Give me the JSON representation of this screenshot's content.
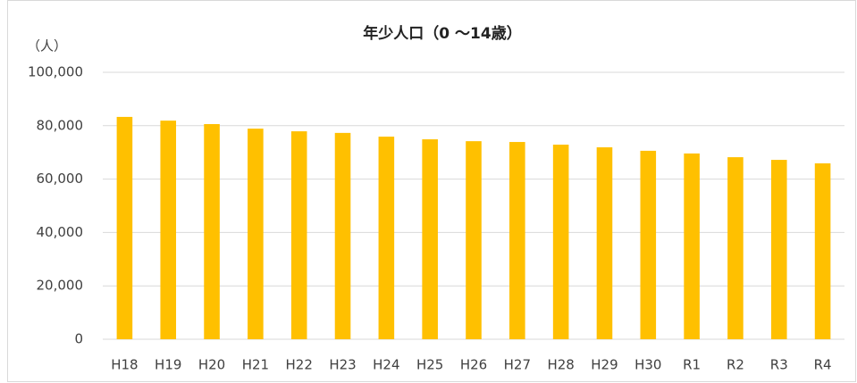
{
  "chart_data": {
    "type": "bar",
    "title": "年少人口（0 ～14歳）",
    "y_axis_label": "（人）",
    "categories": [
      "H18",
      "H19",
      "H20",
      "H21",
      "H22",
      "H23",
      "H24",
      "H25",
      "H26",
      "H27",
      "H28",
      "H29",
      "H30",
      "R1",
      "R2",
      "R3",
      "R4"
    ],
    "values": [
      83300,
      81900,
      80600,
      78900,
      77900,
      77300,
      75900,
      74900,
      74200,
      73900,
      72900,
      71900,
      70600,
      69600,
      68200,
      67200,
      65900
    ],
    "color": "#ffc000",
    "ylim": [
      0,
      100000
    ],
    "yticks": [
      0,
      {
        "value": 20000,
        "label": "20,000"
      },
      {
        "value": 40000,
        "label": "40,000"
      },
      {
        "value": 60000,
        "label": "60,000"
      },
      {
        "value": 80000,
        "label": "80,000"
      },
      {
        "value": 100000,
        "label": "100,000"
      }
    ],
    "grid": true
  }
}
